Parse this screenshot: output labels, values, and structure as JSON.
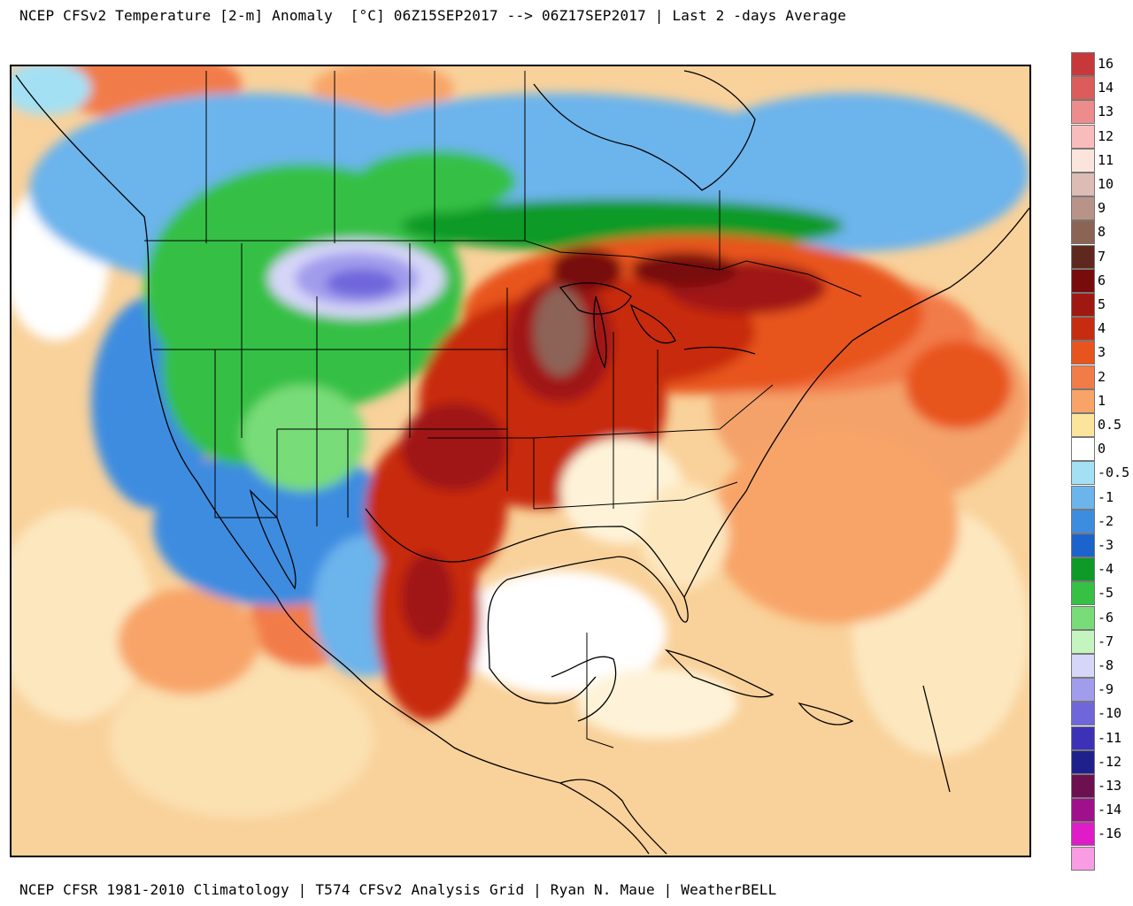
{
  "header": {
    "title": "NCEP CFSv2 Temperature [2-m] Anomaly  [°C] 06Z15SEP2017 --> 06Z17SEP2017 | Last 2 -days Average"
  },
  "footer": {
    "text": "NCEP CFSR 1981-2010 Climatology | T574 CFSv2 Analysis Grid | Ryan N. Maue | WeatherBELL"
  },
  "legend": {
    "items": [
      {
        "label": "16",
        "color": "#c8383a"
      },
      {
        "label": "14",
        "color": "#dc5c5c"
      },
      {
        "label": "13",
        "color": "#ec8c8c"
      },
      {
        "label": "12",
        "color": "#f8bcbc"
      },
      {
        "label": "11",
        "color": "#fae4dc"
      },
      {
        "label": "10",
        "color": "#dcbcb4"
      },
      {
        "label": "9",
        "color": "#b89488"
      },
      {
        "label": "8",
        "color": "#8c6456"
      },
      {
        "label": "7",
        "color": "#5e281e"
      },
      {
        "label": "6",
        "color": "#780c0c"
      },
      {
        "label": "5",
        "color": "#a01812"
      },
      {
        "label": "4",
        "color": "#c82c10"
      },
      {
        "label": "3",
        "color": "#e8541e"
      },
      {
        "label": "2",
        "color": "#f27c48"
      },
      {
        "label": "1",
        "color": "#f8a468"
      },
      {
        "label": "0.5",
        "color": "#fce49c"
      },
      {
        "label": "0",
        "color": "#ffffff"
      },
      {
        "label": "-0.5",
        "color": "#a4e0f4"
      },
      {
        "label": "-1",
        "color": "#6cb4ec"
      },
      {
        "label": "-2",
        "color": "#3c8ce0"
      },
      {
        "label": "-3",
        "color": "#1c64cc"
      },
      {
        "label": "-4",
        "color": "#0e9a26"
      },
      {
        "label": "-5",
        "color": "#36c044"
      },
      {
        "label": "-6",
        "color": "#78dc78"
      },
      {
        "label": "-7",
        "color": "#c4f4c0"
      },
      {
        "label": "-8",
        "color": "#d6d6f8"
      },
      {
        "label": "-9",
        "color": "#a29cec"
      },
      {
        "label": "-10",
        "color": "#7066dc"
      },
      {
        "label": "-11",
        "color": "#3c32b8"
      },
      {
        "label": "-12",
        "color": "#20208c"
      },
      {
        "label": "-13",
        "color": "#6c1050"
      },
      {
        "label": "-14",
        "color": "#a0108c"
      },
      {
        "label": "-16",
        "color": "#e01cc8"
      },
      {
        "label": "",
        "color": "#f89ce4"
      }
    ]
  },
  "colors": {
    "background_warm": "#f9d19a",
    "border": "#000000"
  }
}
